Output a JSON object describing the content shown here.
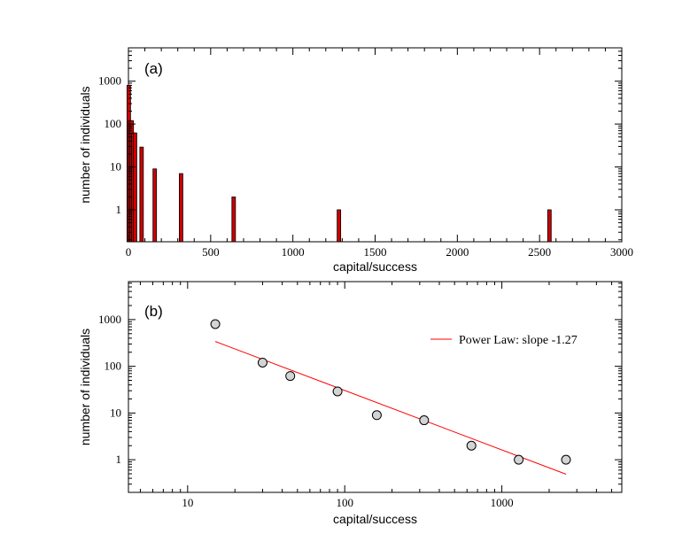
{
  "chart_data": [
    {
      "type": "bar",
      "panel_label": "(a)",
      "xlabel": "capital/success",
      "ylabel": "number of individuals",
      "xlim": [
        0,
        3000
      ],
      "ylim": [
        0.18,
        6000
      ],
      "yscale": "log",
      "x_ticks": [
        0,
        500,
        1000,
        1500,
        2000,
        2500,
        3000
      ],
      "x_tick_labels": [
        "0",
        "500",
        "1000",
        "1500",
        "2000",
        "2500",
        "3000"
      ],
      "y_ticks": [
        1,
        10,
        100,
        1000
      ],
      "y_tick_labels": [
        "1",
        "10",
        "100",
        "1000"
      ],
      "bar_color": "#cc0000",
      "bars": [
        {
          "x": 2,
          "y": 800
        },
        {
          "x": 10,
          "y": 120
        },
        {
          "x": 20,
          "y": 120
        },
        {
          "x": 30,
          "y": 62
        },
        {
          "x": 40,
          "y": 62
        },
        {
          "x": 80,
          "y": 29
        },
        {
          "x": 160,
          "y": 9
        },
        {
          "x": 320,
          "y": 7
        },
        {
          "x": 640,
          "y": 2
        },
        {
          "x": 1280,
          "y": 1
        },
        {
          "x": 2560,
          "y": 1
        }
      ]
    },
    {
      "type": "scatter",
      "panel_label": "(b)",
      "xlabel": "capital/success",
      "ylabel": "number of individuals",
      "xscale": "log",
      "yscale": "log",
      "xlim": [
        4.2,
        5800
      ],
      "ylim": [
        0.2,
        6500
      ],
      "x_ticks": [
        10,
        100,
        1000
      ],
      "x_tick_labels": [
        "10",
        "100",
        "1000"
      ],
      "y_ticks": [
        1,
        10,
        100,
        1000
      ],
      "y_tick_labels": [
        "1",
        "10",
        "100",
        "1000"
      ],
      "points": [
        {
          "x": 15,
          "y": 800
        },
        {
          "x": 30,
          "y": 120
        },
        {
          "x": 45,
          "y": 62
        },
        {
          "x": 90,
          "y": 29
        },
        {
          "x": 160,
          "y": 9
        },
        {
          "x": 320,
          "y": 7
        },
        {
          "x": 640,
          "y": 2
        },
        {
          "x": 1280,
          "y": 1
        },
        {
          "x": 2560,
          "y": 1
        }
      ],
      "fit_line": {
        "x": [
          15,
          2560
        ],
        "y": [
          340,
          0.49
        ]
      },
      "fit_color": "#ff0000",
      "point_fill": "#d3d3d3",
      "legend": {
        "label": "Power Law: slope -1.27",
        "placement": "top-right"
      }
    }
  ]
}
